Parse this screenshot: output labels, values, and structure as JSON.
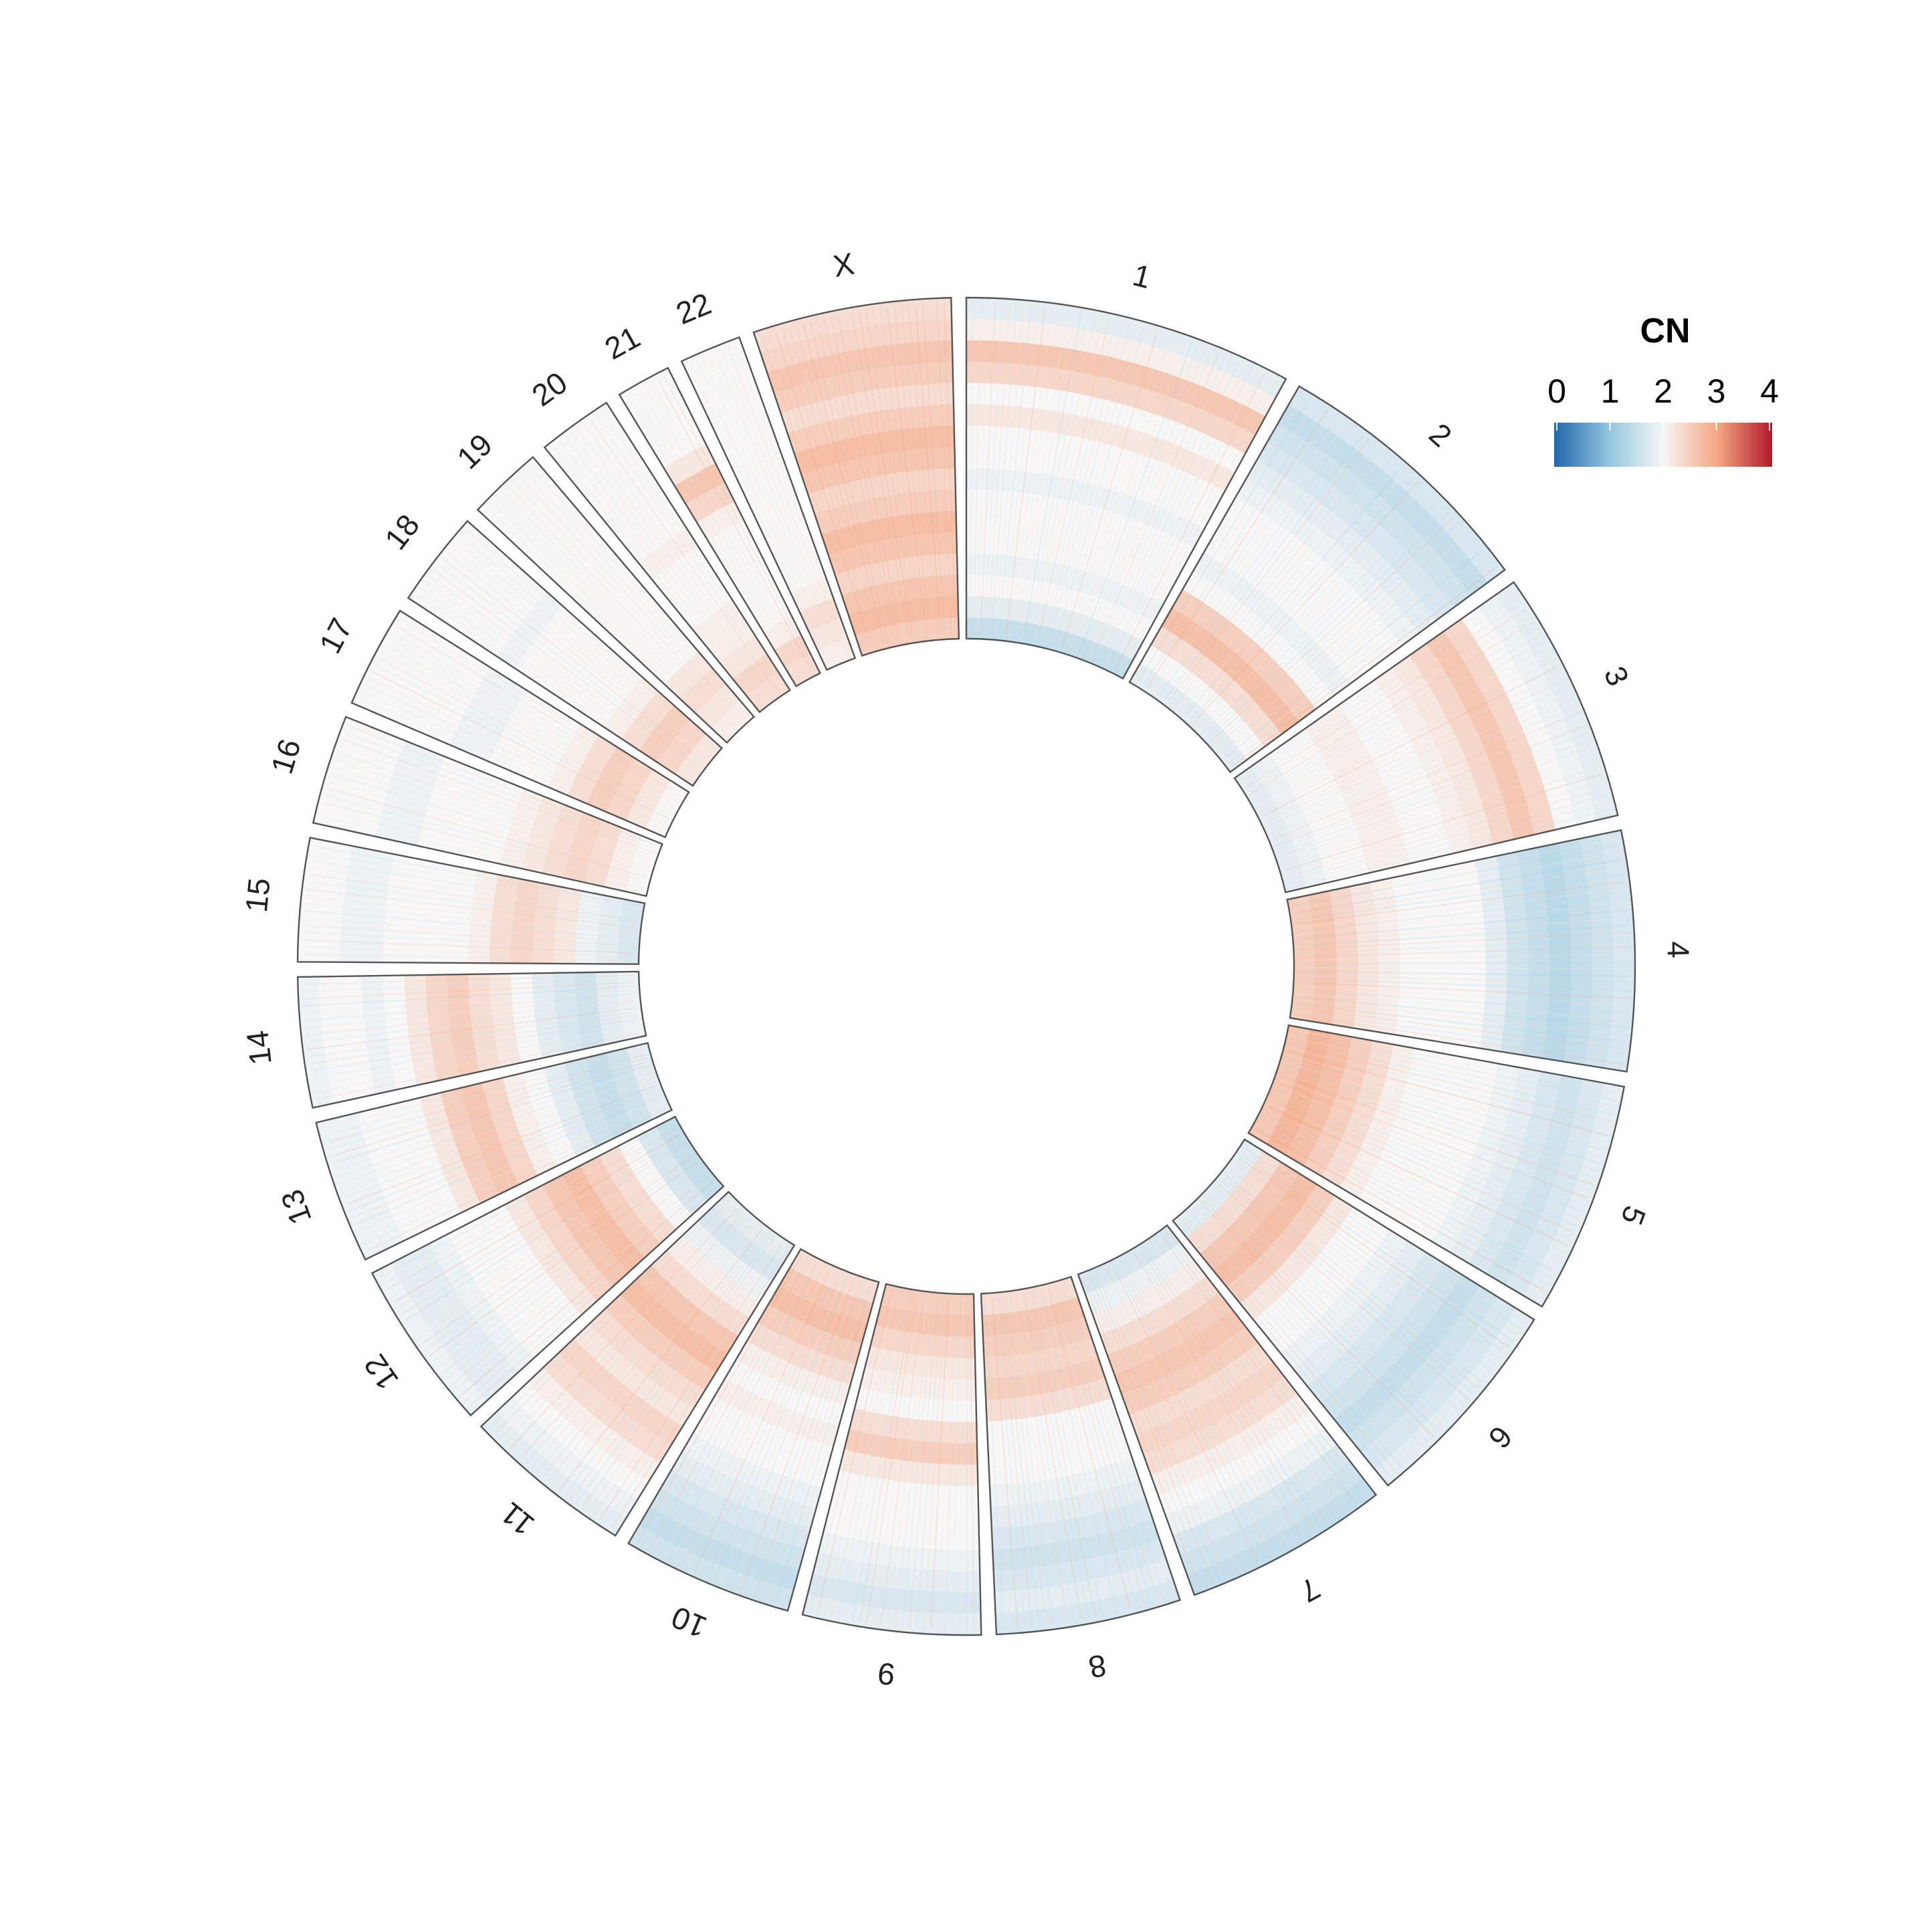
{
  "chart_data": {
    "type": "heatmap",
    "layout": "circular",
    "title": "",
    "legend": {
      "title": "CN",
      "placement": "top-right",
      "ticks": [
        "0",
        "1",
        "2",
        "3",
        "4"
      ],
      "range": [
        0,
        4
      ],
      "colors": [
        "#2166ac",
        "#92c5de",
        "#f7f7f7",
        "#f4a582",
        "#b2182b"
      ]
    },
    "sectors": [
      {
        "label": "1",
        "profile": [
          1.5,
          1.8,
          2.0,
          1.9,
          2.0,
          2.0,
          2.0,
          1.9,
          2.0,
          2.0,
          2.2,
          2.0,
          2.4,
          2.6,
          2.1,
          1.8
        ]
      },
      {
        "label": "2",
        "profile": [
          1.8,
          2.0,
          2.3,
          2.7,
          2.5,
          2.0,
          1.9,
          2.0,
          2.0,
          2.0,
          1.9,
          1.8,
          1.7,
          1.6,
          1.5,
          1.7
        ]
      },
      {
        "label": "3",
        "profile": [
          1.8,
          1.9,
          2.0,
          2.0,
          2.1,
          2.1,
          2.0,
          2.0,
          2.1,
          2.2,
          2.4,
          2.6,
          2.4,
          2.0,
          1.9,
          1.8
        ]
      },
      {
        "label": "4",
        "profile": [
          2.5,
          2.6,
          2.4,
          2.2,
          2.1,
          2.0,
          2.0,
          2.0,
          2.0,
          1.8,
          1.6,
          1.5,
          1.4,
          1.5,
          1.6,
          1.7
        ]
      },
      {
        "label": "5",
        "profile": [
          2.6,
          2.8,
          2.7,
          2.5,
          2.3,
          2.1,
          2.0,
          2.0,
          2.0,
          2.0,
          1.9,
          1.8,
          1.7,
          1.6,
          1.7,
          1.8
        ]
      },
      {
        "label": "6",
        "profile": [
          1.8,
          2.3,
          2.6,
          2.7,
          2.5,
          2.2,
          2.0,
          2.0,
          1.9,
          1.8,
          1.7,
          1.6,
          1.5,
          1.6,
          1.7,
          1.8
        ]
      },
      {
        "label": "7",
        "profile": [
          1.7,
          1.9,
          2.1,
          2.3,
          2.5,
          2.6,
          2.5,
          2.3,
          2.4,
          2.3,
          2.1,
          2.0,
          1.9,
          1.7,
          1.6,
          1.5
        ]
      },
      {
        "label": "8",
        "profile": [
          2.3,
          2.6,
          2.5,
          2.4,
          2.5,
          2.3,
          2.0,
          2.0,
          2.0,
          1.9,
          1.8,
          1.7,
          1.6,
          1.7,
          1.8,
          1.7
        ]
      },
      {
        "label": "9",
        "profile": [
          2.5,
          2.6,
          2.4,
          2.2,
          2.1,
          2.0,
          2.3,
          2.5,
          2.2,
          2.0,
          2.0,
          2.0,
          1.9,
          1.8,
          1.7,
          1.8
        ]
      },
      {
        "label": "10",
        "profile": [
          2.3,
          2.6,
          2.7,
          2.5,
          2.3,
          2.1,
          2.0,
          2.1,
          2.0,
          2.0,
          1.9,
          1.8,
          1.7,
          1.6,
          1.5,
          1.6
        ]
      },
      {
        "label": "11",
        "profile": [
          1.8,
          1.7,
          1.9,
          2.1,
          2.3,
          2.6,
          2.7,
          2.5,
          2.3,
          2.2,
          2.4,
          2.3,
          2.1,
          2.0,
          1.9,
          1.8
        ]
      },
      {
        "label": "12",
        "profile": [
          1.5,
          1.7,
          2.0,
          2.3,
          2.5,
          2.7,
          2.6,
          2.4,
          2.2,
          2.0,
          2.0,
          2.0,
          1.9,
          1.8,
          1.8,
          1.9
        ]
      },
      {
        "label": "13",
        "profile": [
          1.8,
          1.6,
          1.5,
          1.6,
          1.8,
          2.0,
          2.1,
          2.4,
          2.6,
          2.5,
          2.2,
          2.0,
          2.0,
          2.0,
          1.9,
          1.9
        ]
      },
      {
        "label": "14",
        "profile": [
          1.9,
          1.8,
          1.6,
          1.7,
          1.8,
          2.0,
          2.2,
          2.3,
          2.5,
          2.4,
          2.2,
          2.0,
          1.9,
          2.0,
          2.0,
          1.9
        ]
      },
      {
        "label": "15",
        "profile": [
          1.7,
          1.8,
          1.9,
          2.2,
          2.3,
          2.4,
          2.3,
          2.1,
          2.0,
          2.0,
          2.0,
          2.0,
          1.9,
          1.9,
          2.0,
          2.0
        ]
      },
      {
        "label": "16",
        "profile": [
          2.0,
          2.1,
          2.3,
          2.4,
          2.3,
          2.2,
          2.1,
          2.0,
          2.0,
          2.0,
          2.0,
          1.9,
          1.9,
          2.0,
          2.0,
          2.0
        ]
      },
      {
        "label": "17",
        "profile": [
          2.0,
          2.2,
          2.4,
          2.5,
          2.3,
          2.1,
          2.0,
          2.0,
          2.0,
          1.9,
          1.9,
          2.0,
          2.0,
          2.0,
          2.0,
          2.0
        ]
      },
      {
        "label": "18",
        "profile": [
          2.2,
          2.4,
          2.5,
          2.3,
          2.1,
          2.0,
          2.0,
          2.0,
          2.0,
          2.0,
          1.9,
          2.0,
          2.0,
          2.0,
          2.0,
          2.0
        ]
      },
      {
        "label": "19",
        "profile": [
          2.1,
          2.2,
          2.3,
          2.2,
          2.0,
          2.0,
          2.0,
          2.0,
          2.0,
          2.0,
          2.0,
          2.0,
          2.0,
          2.0,
          2.0,
          2.0
        ]
      },
      {
        "label": "20",
        "profile": [
          2.3,
          2.4,
          2.2,
          2.1,
          2.1,
          2.0,
          2.0,
          2.0,
          2.1,
          2.0,
          2.0,
          2.0,
          2.0,
          2.0,
          2.0,
          2.0
        ]
      },
      {
        "label": "21",
        "profile": [
          2.3,
          2.4,
          2.1,
          2.0,
          2.0,
          2.0,
          2.0,
          2.0,
          2.1,
          2.4,
          2.6,
          2.2,
          2.0,
          2.0,
          2.0,
          2.0
        ]
      },
      {
        "label": "22",
        "profile": [
          2.1,
          2.2,
          2.3,
          2.1,
          2.0,
          2.0,
          2.0,
          2.0,
          2.0,
          2.0,
          2.0,
          2.0,
          2.0,
          2.0,
          2.0,
          2.0
        ]
      },
      {
        "label": "X",
        "profile": [
          2.5,
          2.7,
          2.6,
          2.4,
          2.6,
          2.7,
          2.5,
          2.4,
          2.6,
          2.7,
          2.5,
          2.3,
          2.5,
          2.6,
          2.4,
          2.3
        ]
      }
    ]
  }
}
